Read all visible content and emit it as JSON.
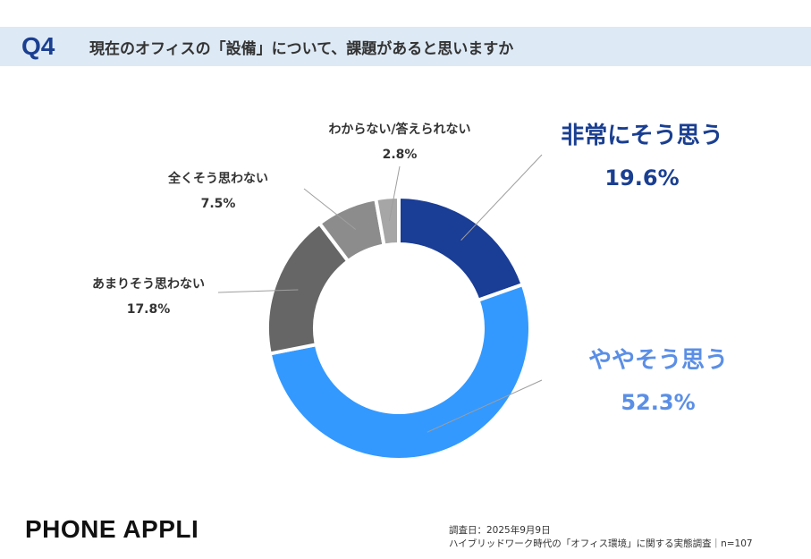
{
  "header": {
    "question_number": "Q4",
    "question_text": "現在のオフィスの「設備」について、課題があると思いますか"
  },
  "chart_data": {
    "type": "pie",
    "donut": true,
    "unit": "%",
    "categories": [
      "非常にそう思う",
      "ややそう思う",
      "あまりそう思わない",
      "全くそう思わない",
      "わからない/答えられない"
    ],
    "values": [
      19.6,
      52.3,
      17.8,
      7.5,
      2.8
    ],
    "labels": [
      "19.6%",
      "52.3%",
      "17.8%",
      "7.5%",
      "2.8%"
    ],
    "colors": [
      "#1a3d96",
      "#3399ff",
      "#666666",
      "#8c8c8c",
      "#a6a6a6"
    ],
    "label_colors": [
      "#1a3f91",
      "#5b8fe6",
      "#333333",
      "#333333",
      "#333333"
    ]
  },
  "footer": {
    "brand": "PHONE APPLI",
    "survey_date": "調査日：2025年9月9日",
    "survey_name": "ハイブリッドワーク時代の「オフィス環境」に関する実態調査｜n=107"
  }
}
